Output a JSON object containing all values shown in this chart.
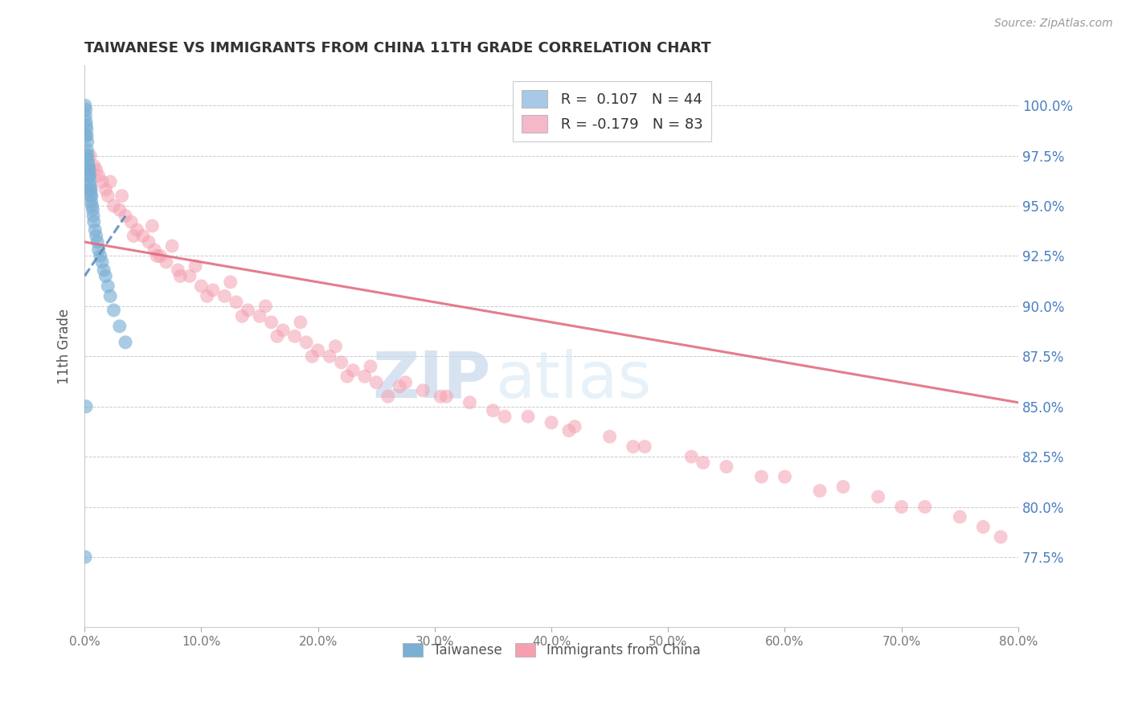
{
  "title": "TAIWANESE VS IMMIGRANTS FROM CHINA 11TH GRADE CORRELATION CHART",
  "source": "Source: ZipAtlas.com",
  "ylabel": "11th Grade",
  "y_ticks": [
    77.5,
    80.0,
    82.5,
    85.0,
    87.5,
    90.0,
    92.5,
    95.0,
    97.5,
    100.0
  ],
  "x_ticks": [
    0.0,
    10.0,
    20.0,
    30.0,
    40.0,
    50.0,
    60.0,
    70.0,
    80.0
  ],
  "xlim": [
    0.0,
    80.0
  ],
  "ylim": [
    74.0,
    102.0
  ],
  "legend_r1": "R =  0.107",
  "legend_n1": "N = 44",
  "legend_r2": "R = -0.179",
  "legend_n2": "N = 83",
  "color_blue": "#7bafd4",
  "color_pink": "#f4a0b0",
  "color_blue_line": "#5588bb",
  "color_pink_line": "#e06678",
  "watermark_zip": "ZIP",
  "watermark_atlas": "atlas",
  "taiwanese_x": [
    0.05,
    0.08,
    0.1,
    0.1,
    0.12,
    0.15,
    0.15,
    0.18,
    0.2,
    0.22,
    0.25,
    0.28,
    0.3,
    0.32,
    0.35,
    0.38,
    0.4,
    0.42,
    0.45,
    0.48,
    0.5,
    0.52,
    0.55,
    0.58,
    0.6,
    0.65,
    0.7,
    0.75,
    0.8,
    0.9,
    1.0,
    1.1,
    1.2,
    1.35,
    1.5,
    1.65,
    1.8,
    2.0,
    2.2,
    2.5,
    3.0,
    3.5,
    0.06,
    0.13
  ],
  "taiwanese_y": [
    100.0,
    99.5,
    99.8,
    98.5,
    99.2,
    99.0,
    97.5,
    98.8,
    98.5,
    97.8,
    98.2,
    97.5,
    97.2,
    96.8,
    97.0,
    96.5,
    96.8,
    96.2,
    96.5,
    96.0,
    95.8,
    95.5,
    95.8,
    95.2,
    95.5,
    95.0,
    94.8,
    94.5,
    94.2,
    93.8,
    93.5,
    93.2,
    92.8,
    92.5,
    92.2,
    91.8,
    91.5,
    91.0,
    90.5,
    89.8,
    89.0,
    88.2,
    77.5,
    85.0
  ],
  "china_x": [
    0.5,
    0.8,
    1.0,
    1.2,
    1.5,
    1.8,
    2.0,
    2.5,
    3.0,
    3.5,
    4.0,
    4.5,
    5.0,
    5.5,
    6.0,
    6.5,
    7.0,
    8.0,
    9.0,
    10.0,
    11.0,
    12.0,
    13.0,
    14.0,
    15.0,
    16.0,
    17.0,
    18.0,
    19.0,
    20.0,
    21.0,
    22.0,
    23.0,
    24.0,
    25.0,
    27.0,
    29.0,
    31.0,
    33.0,
    35.0,
    38.0,
    40.0,
    42.0,
    45.0,
    48.0,
    52.0,
    55.0,
    60.0,
    65.0,
    68.0,
    72.0,
    75.0,
    77.0,
    78.5,
    2.2,
    3.2,
    5.8,
    7.5,
    9.5,
    12.5,
    15.5,
    18.5,
    21.5,
    24.5,
    27.5,
    30.5,
    36.0,
    41.5,
    47.0,
    53.0,
    58.0,
    63.0,
    70.0,
    4.2,
    6.2,
    8.2,
    10.5,
    13.5,
    16.5,
    19.5,
    22.5,
    26.0
  ],
  "china_y": [
    97.5,
    97.0,
    96.8,
    96.5,
    96.2,
    95.8,
    95.5,
    95.0,
    94.8,
    94.5,
    94.2,
    93.8,
    93.5,
    93.2,
    92.8,
    92.5,
    92.2,
    91.8,
    91.5,
    91.0,
    90.8,
    90.5,
    90.2,
    89.8,
    89.5,
    89.2,
    88.8,
    88.5,
    88.2,
    87.8,
    87.5,
    87.2,
    86.8,
    86.5,
    86.2,
    86.0,
    85.8,
    85.5,
    85.2,
    84.8,
    84.5,
    84.2,
    84.0,
    83.5,
    83.0,
    82.5,
    82.0,
    81.5,
    81.0,
    80.5,
    80.0,
    79.5,
    79.0,
    78.5,
    96.2,
    95.5,
    94.0,
    93.0,
    92.0,
    91.2,
    90.0,
    89.2,
    88.0,
    87.0,
    86.2,
    85.5,
    84.5,
    83.8,
    83.0,
    82.2,
    81.5,
    80.8,
    80.0,
    93.5,
    92.5,
    91.5,
    90.5,
    89.5,
    88.5,
    87.5,
    86.5,
    85.5
  ],
  "pink_line_x0": 0.0,
  "pink_line_x1": 80.0,
  "pink_line_y0": 93.2,
  "pink_line_y1": 85.2,
  "blue_line_x0": 0.0,
  "blue_line_x1": 3.5,
  "blue_line_y0": 91.5,
  "blue_line_y1": 94.5
}
